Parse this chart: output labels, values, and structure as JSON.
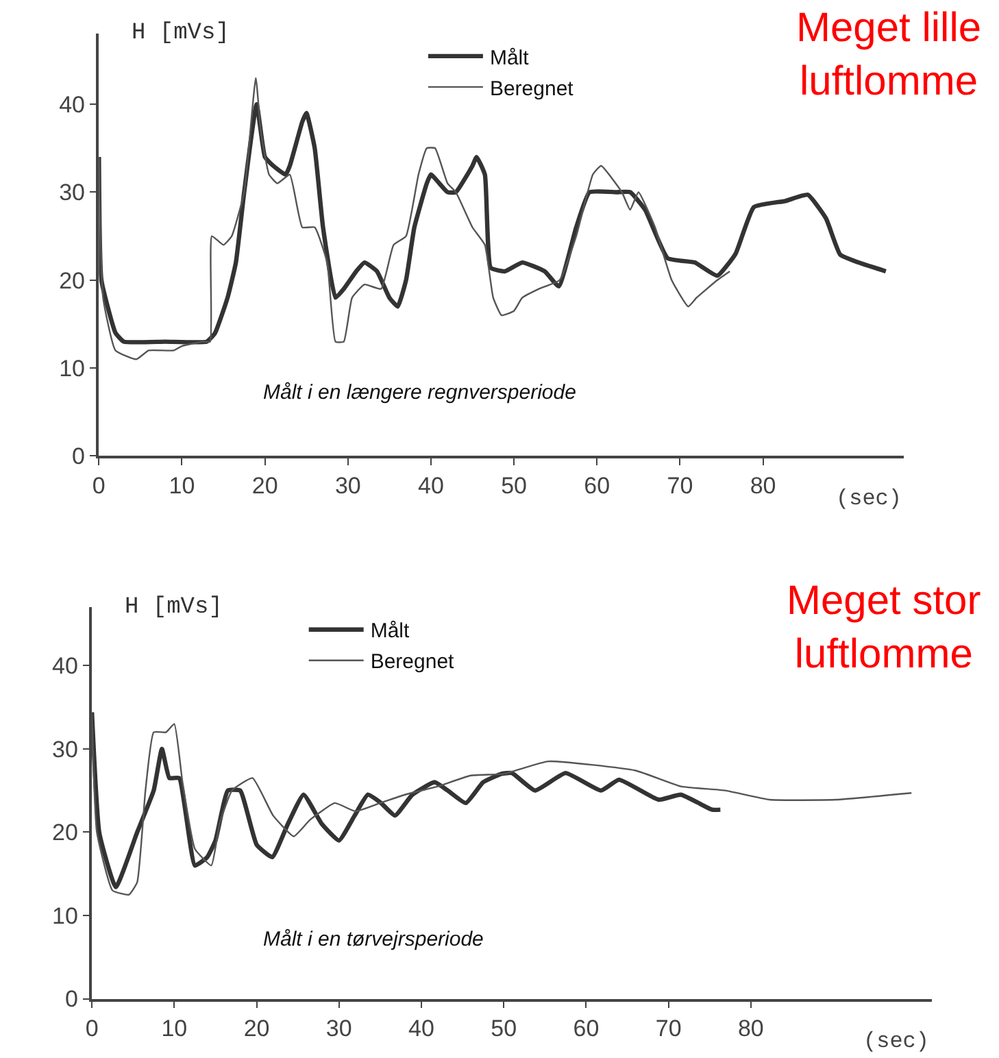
{
  "chart_data": [
    {
      "type": "line",
      "xlabel": "(sec)",
      "ylabel": "H [mVs]",
      "xlim": [
        0,
        97
      ],
      "ylim": [
        0,
        48
      ],
      "xticks": [
        0,
        10,
        20,
        30,
        40,
        50,
        60,
        70,
        80
      ],
      "yticks": [
        0,
        10,
        20,
        30,
        40
      ],
      "legend": "top",
      "marker": "none",
      "annotations": [
        "Meget lille\nluftlomme",
        "Målt i en længere regnversperiode"
      ],
      "series": [
        {
          "name": "Målt",
          "color": "#333333",
          "x": [
            0,
            0.3,
            2,
            3,
            8,
            13,
            14,
            15.5,
            16.5,
            17.5,
            19,
            20,
            21,
            22.5,
            23,
            24.5,
            25,
            26,
            27,
            28.5,
            29.5,
            31,
            32,
            33.5,
            35,
            36,
            37,
            38,
            39.5,
            40,
            42,
            43,
            45,
            45.5,
            46.5,
            47.2,
            48.9,
            51,
            53.7,
            55.4,
            57.5,
            59.1,
            62.4,
            64,
            65.8,
            68.5,
            71.8,
            74.5,
            76.7,
            78.9,
            82.7,
            85.4,
            87.6,
            89.3,
            91.5,
            94.8
          ],
          "values": [
            34,
            20,
            14,
            13,
            13,
            13,
            14,
            18,
            22,
            30,
            40,
            34,
            33,
            32,
            33,
            38,
            39,
            35,
            26,
            18,
            19,
            21,
            22,
            21,
            18,
            17,
            20,
            26,
            31,
            32,
            30,
            30,
            33,
            34,
            32,
            21.4,
            21,
            22,
            21,
            19.3,
            26,
            30,
            30,
            30,
            28,
            22.5,
            22,
            20.5,
            23,
            28.3,
            29,
            29.7,
            27,
            22.9,
            22,
            21
          ]
        },
        {
          "name": "Beregnet",
          "color": "#555555",
          "x": [
            0,
            0.5,
            2,
            4.5,
            6,
            9,
            10,
            12.5,
            13.4,
            13.6,
            15,
            16,
            17.5,
            18.9,
            19.5,
            20.5,
            21.5,
            23,
            24.5,
            26,
            27.5,
            28.5,
            29.5,
            30.5,
            32,
            34,
            35.5,
            37,
            38.5,
            39.5,
            40.5,
            42,
            43,
            45,
            46.5,
            47.5,
            48.5,
            50,
            51,
            53,
            55.5,
            57.5,
            59.5,
            60.5,
            63,
            64,
            65,
            67,
            69,
            71,
            72,
            74.5,
            76
          ],
          "values": [
            34,
            18,
            12,
            11,
            12,
            12,
            12.5,
            13,
            13,
            25,
            24,
            25,
            30,
            43,
            37,
            32,
            31,
            32,
            26,
            26,
            22,
            13,
            13,
            18,
            19.5,
            19,
            24,
            25,
            32,
            35,
            35,
            31,
            30,
            26,
            24,
            18,
            16,
            16.5,
            18,
            19,
            20,
            25,
            32,
            33,
            30,
            28,
            30,
            26,
            20,
            17,
            18,
            20,
            21
          ]
        }
      ]
    },
    {
      "type": "line",
      "xlabel": "(sec)",
      "ylabel": "H [mVs]",
      "xlim": [
        0,
        102
      ],
      "ylim": [
        0,
        47
      ],
      "xticks": [
        0,
        10,
        20,
        30,
        40,
        50,
        60,
        70,
        80
      ],
      "yticks": [
        0,
        10,
        20,
        30,
        40
      ],
      "legend": "top left",
      "marker": "none",
      "annotations": [
        "Meget stor\nluftlomme",
        "Målt i en tørvejrsperiode"
      ],
      "series": [
        {
          "name": "Målt",
          "color": "#333333",
          "x": [
            0,
            0.9,
            2.9,
            5.5,
            7.5,
            8.5,
            9.4,
            10.6,
            12.5,
            14,
            15,
            16.5,
            18,
            20,
            21.9,
            23.8,
            25.7,
            27.9,
            30,
            31.9,
            33.5,
            35.1,
            36.8,
            38.9,
            41.6,
            43.2,
            45.4,
            47.5,
            49.7,
            51,
            53.8,
            57.5,
            61.8,
            64,
            68.8,
            71.5,
            75.3,
            76.3
          ],
          "values": [
            34.4,
            19.9,
            13.4,
            20,
            25,
            30,
            26.5,
            26.5,
            16,
            17,
            19,
            25,
            25,
            18.5,
            17,
            21,
            24.5,
            21,
            19,
            22,
            24.5,
            23.5,
            22,
            24.5,
            26,
            25,
            23.5,
            26,
            27,
            27.1,
            25,
            27.1,
            25,
            26.3,
            23.9,
            24.5,
            22.7,
            22.7
          ]
        },
        {
          "name": "Beregnet",
          "color": "#555555",
          "x": [
            0,
            0.6,
            2.5,
            4.5,
            5.5,
            6.5,
            7.5,
            9,
            10,
            11,
            12.5,
            14.5,
            15.5,
            17,
            19.5,
            22,
            24.5,
            26.5,
            29.5,
            32,
            35,
            38,
            42,
            46,
            50,
            55.4,
            66,
            71.5,
            76.9,
            82.3,
            90.3,
            99.5
          ],
          "values": [
            34,
            20,
            13,
            12.5,
            14,
            25,
            32,
            32,
            33,
            26,
            18,
            16,
            21,
            25,
            26.5,
            22,
            19.5,
            21.5,
            23.5,
            22.5,
            23.5,
            24.5,
            25.5,
            26.8,
            27,
            28.5,
            27.4,
            25.5,
            25,
            23.9,
            23.9,
            24.7
          ]
        }
      ]
    }
  ]
}
